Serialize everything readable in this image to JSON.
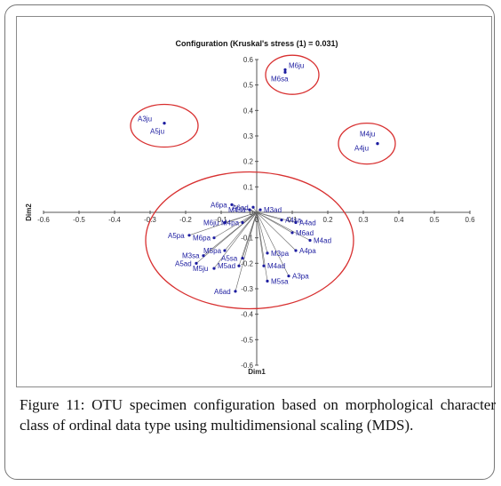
{
  "caption": {
    "label": "Figure 11:",
    "text": " OTU specimen configuration based on morphological character class of ordinal data type using multidimensional scaling (MDS)."
  },
  "colors": {
    "points": "#1d1da0",
    "circles": "#d83030",
    "axes": "#555555",
    "lines": "#666666"
  },
  "chart_data": {
    "type": "scatter",
    "title": "Configuration (Kruskal's stress (1) = 0.031)",
    "xlabel": "Dim1",
    "ylabel": "Dim2",
    "xlim": [
      -0.6,
      0.6
    ],
    "ylim": [
      -0.6,
      0.6
    ],
    "xticks": [
      "-0.6",
      "-0.5",
      "-0.4",
      "-0.3",
      "-0.2",
      "-0.1",
      "0",
      "0.1",
      "0.2",
      "0.3",
      "0.4",
      "0.5",
      "0.6"
    ],
    "yticks": [
      "0.6",
      "0.5",
      "0.4",
      "0.3",
      "0.2",
      "0.1",
      "0",
      "-0.1",
      "-0.2",
      "-0.3",
      "-0.4",
      "-0.5",
      "-0.6"
    ],
    "grid": false,
    "points": [
      {
        "label": "M6ju",
        "x": 0.08,
        "y": 0.56
      },
      {
        "label": "M6sa",
        "x": 0.08,
        "y": 0.55
      },
      {
        "label": "A3ju",
        "x": -0.26,
        "y": 0.35
      },
      {
        "label": "A5ju",
        "x": -0.26,
        "y": 0.35
      },
      {
        "label": "M4ju",
        "x": 0.34,
        "y": 0.27
      },
      {
        "label": "A4ju",
        "x": 0.34,
        "y": 0.27
      },
      {
        "label": "A6ad",
        "x": -0.01,
        "y": 0.02
      },
      {
        "label": "M4sa",
        "x": -0.02,
        "y": 0.01
      },
      {
        "label": "A6pa",
        "x": -0.07,
        "y": 0.03
      },
      {
        "label": "M3ad",
        "x": 0.01,
        "y": 0.01
      },
      {
        "label": "A4sa",
        "x": 0.07,
        "y": -0.03
      },
      {
        "label": "M6ju",
        "x": -0.09,
        "y": -0.04
      },
      {
        "label": "M4pa",
        "x": -0.04,
        "y": -0.04
      },
      {
        "label": "A4ad",
        "x": 0.11,
        "y": -0.04
      },
      {
        "label": "M6ad",
        "x": 0.1,
        "y": -0.08
      },
      {
        "label": "A5pa",
        "x": -0.19,
        "y": -0.09
      },
      {
        "label": "M6pa",
        "x": -0.12,
        "y": -0.1
      },
      {
        "label": "M4ad",
        "x": 0.15,
        "y": -0.11
      },
      {
        "label": "A4pa",
        "x": 0.11,
        "y": -0.15
      },
      {
        "label": "M3pa",
        "x": 0.03,
        "y": -0.16
      },
      {
        "label": "M5pa",
        "x": -0.09,
        "y": -0.15
      },
      {
        "label": "M3sa",
        "x": -0.15,
        "y": -0.17
      },
      {
        "label": "A5sa",
        "x": -0.04,
        "y": -0.18
      },
      {
        "label": "A5ad",
        "x": -0.17,
        "y": -0.2
      },
      {
        "label": "M5ad",
        "x": -0.05,
        "y": -0.21
      },
      {
        "label": "M4ad",
        "x": 0.02,
        "y": -0.21
      },
      {
        "label": "M5ju",
        "x": -0.12,
        "y": -0.22
      },
      {
        "label": "M5sa",
        "x": 0.03,
        "y": -0.27
      },
      {
        "label": "A3pa",
        "x": 0.09,
        "y": -0.25
      },
      {
        "label": "A6ad",
        "x": -0.06,
        "y": -0.31
      }
    ],
    "groups": [
      {
        "members": [
          "M6ju",
          "M6sa"
        ]
      },
      {
        "members": [
          "A3ju",
          "A5ju"
        ]
      },
      {
        "members": [
          "M4ju",
          "A4ju"
        ]
      },
      {
        "members": "remaining specimens"
      }
    ]
  }
}
